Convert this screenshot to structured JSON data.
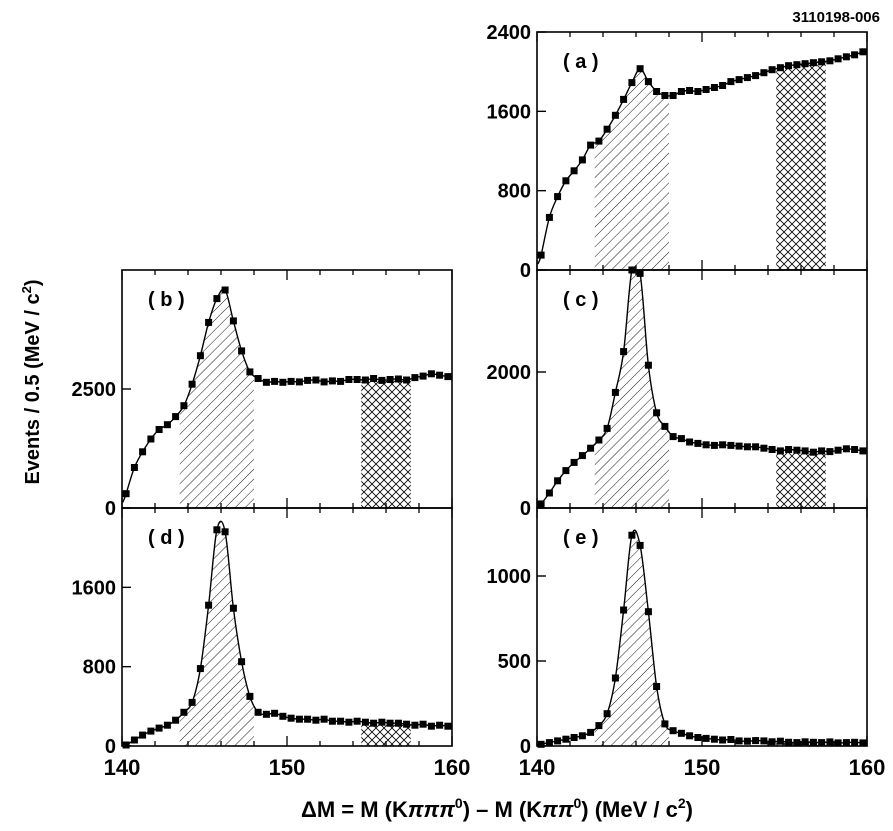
{
  "figure_id": "3110198-006",
  "ylabel_main": "Events / 0.5 (MeV / c",
  "ylabel_sup": "2",
  "ylabel_close": ")",
  "xlabel": {
    "delta": "Δ",
    "main": "M = M (K",
    "pi1": "π",
    "pi2": "π",
    "pi3": "π",
    "zero1": "0",
    "mid": ") – M (K",
    "pi4": "π",
    "pi5": "π",
    "zero2": "0",
    "unit": ") (MeV / c",
    "unit_sup": "2",
    "close": ")"
  },
  "chart_data": [
    {
      "type": "scatter",
      "panel": "a",
      "label": "( a )",
      "xlim": [
        140,
        160
      ],
      "ylim": [
        0,
        2400
      ],
      "yticks": [
        0,
        800,
        1600,
        2400
      ],
      "xticks": [
        140,
        150,
        160
      ],
      "signal_band": [
        143.5,
        148
      ],
      "sideband": [
        154.5,
        157.5
      ],
      "x": [
        140.25,
        140.75,
        141.25,
        141.75,
        142.25,
        142.75,
        143.25,
        143.75,
        144.25,
        144.75,
        145.25,
        145.75,
        146.25,
        146.75,
        147.25,
        147.75,
        148.25,
        148.75,
        149.25,
        149.75,
        150.25,
        150.75,
        151.25,
        151.75,
        152.25,
        152.75,
        153.25,
        153.75,
        154.25,
        154.75,
        155.25,
        155.75,
        156.25,
        156.75,
        157.25,
        157.75,
        158.25,
        158.75,
        159.25,
        159.75
      ],
      "y": [
        150,
        530,
        740,
        900,
        1000,
        1110,
        1260,
        1300,
        1420,
        1560,
        1720,
        1890,
        2030,
        1900,
        1800,
        1760,
        1760,
        1800,
        1810,
        1800,
        1820,
        1840,
        1860,
        1900,
        1920,
        1940,
        1960,
        1990,
        2020,
        2040,
        2060,
        2070,
        2080,
        2090,
        2100,
        2110,
        2130,
        2150,
        2170,
        2200
      ]
    },
    {
      "type": "scatter",
      "panel": "b",
      "label": "( b )",
      "xlim": [
        140,
        160
      ],
      "ylim": [
        0,
        5000
      ],
      "yticks": [
        0,
        2500
      ],
      "xticks": [
        140,
        150,
        160
      ],
      "signal_band": [
        143.5,
        148
      ],
      "sideband": [
        154.5,
        157.5
      ],
      "x": [
        140.25,
        140.75,
        141.25,
        141.75,
        142.25,
        142.75,
        143.25,
        143.75,
        144.25,
        144.75,
        145.25,
        145.75,
        146.25,
        146.75,
        147.25,
        147.75,
        148.25,
        148.75,
        149.25,
        149.75,
        150.25,
        150.75,
        151.25,
        151.75,
        152.25,
        152.75,
        153.25,
        153.75,
        154.25,
        154.75,
        155.25,
        155.75,
        156.25,
        156.75,
        157.25,
        157.75,
        158.25,
        158.75,
        159.25,
        159.75
      ],
      "y": [
        300,
        850,
        1180,
        1450,
        1650,
        1750,
        1920,
        2150,
        2600,
        3200,
        3900,
        4400,
        4580,
        3930,
        3300,
        2860,
        2720,
        2640,
        2660,
        2640,
        2660,
        2650,
        2680,
        2690,
        2650,
        2670,
        2660,
        2700,
        2700,
        2690,
        2720,
        2680,
        2700,
        2710,
        2690,
        2740,
        2770,
        2820,
        2790,
        2760
      ]
    },
    {
      "type": "scatter",
      "panel": "c",
      "label": "( c )",
      "xlim": [
        140,
        160
      ],
      "ylim": [
        0,
        3500
      ],
      "yticks": [
        0,
        2000
      ],
      "xticks": [
        140,
        150,
        160
      ],
      "signal_band": [
        143.5,
        148
      ],
      "sideband": [
        154.5,
        157.5
      ],
      "x": [
        140.25,
        140.75,
        141.25,
        141.75,
        142.25,
        142.75,
        143.25,
        143.75,
        144.25,
        144.75,
        145.25,
        145.75,
        146.25,
        146.75,
        147.25,
        147.75,
        148.25,
        148.75,
        149.25,
        149.75,
        150.25,
        150.75,
        151.25,
        151.75,
        152.25,
        152.75,
        153.25,
        153.75,
        154.25,
        154.75,
        155.25,
        155.75,
        156.25,
        156.75,
        157.25,
        157.75,
        158.25,
        158.75,
        159.25,
        159.75
      ],
      "y": [
        60,
        220,
        400,
        550,
        670,
        770,
        880,
        1000,
        1170,
        1700,
        2300,
        3500,
        3450,
        2100,
        1400,
        1200,
        1050,
        1020,
        970,
        950,
        930,
        920,
        930,
        920,
        910,
        900,
        900,
        880,
        860,
        840,
        860,
        850,
        840,
        820,
        840,
        830,
        850,
        870,
        860,
        840
      ]
    },
    {
      "type": "scatter",
      "panel": "d",
      "label": "( d )",
      "xlim": [
        140,
        160
      ],
      "ylim": [
        0,
        2400
      ],
      "yticks": [
        0,
        800,
        1600
      ],
      "xticks": [
        140,
        150,
        160
      ],
      "signal_band": [
        143.5,
        148
      ],
      "sideband": [
        154.5,
        157.5
      ],
      "x": [
        140.25,
        140.75,
        141.25,
        141.75,
        142.25,
        142.75,
        143.25,
        143.75,
        144.25,
        144.75,
        145.25,
        145.75,
        146.25,
        146.75,
        147.25,
        147.75,
        148.25,
        148.75,
        149.25,
        149.75,
        150.25,
        150.75,
        151.25,
        151.75,
        152.25,
        152.75,
        153.25,
        153.75,
        154.25,
        154.75,
        155.25,
        155.75,
        156.25,
        156.75,
        157.25,
        157.75,
        158.25,
        158.75,
        159.25,
        159.75
      ],
      "y": [
        10,
        60,
        110,
        150,
        180,
        210,
        260,
        340,
        440,
        780,
        1420,
        2180,
        2160,
        1390,
        850,
        500,
        340,
        320,
        330,
        300,
        280,
        270,
        270,
        260,
        270,
        250,
        250,
        240,
        250,
        240,
        230,
        240,
        230,
        230,
        220,
        210,
        220,
        200,
        210,
        200
      ]
    },
    {
      "type": "scatter",
      "panel": "e",
      "label": "( e )",
      "xlim": [
        140,
        160
      ],
      "ylim": [
        0,
        1400
      ],
      "yticks": [
        0,
        500,
        1000
      ],
      "xticks": [
        140,
        150,
        160
      ],
      "signal_band": [
        143.5,
        148
      ],
      "sideband": [
        154.5,
        157.5
      ],
      "x": [
        140.25,
        140.75,
        141.25,
        141.75,
        142.25,
        142.75,
        143.25,
        143.75,
        144.25,
        144.75,
        145.25,
        145.75,
        146.25,
        146.75,
        147.25,
        147.75,
        148.25,
        148.75,
        149.25,
        149.75,
        150.25,
        150.75,
        151.25,
        151.75,
        152.25,
        152.75,
        153.25,
        153.75,
        154.25,
        154.75,
        155.25,
        155.75,
        156.25,
        156.75,
        157.25,
        157.75,
        158.25,
        158.75,
        159.25,
        159.75
      ],
      "y": [
        10,
        20,
        30,
        40,
        50,
        60,
        80,
        120,
        190,
        400,
        800,
        1240,
        1180,
        790,
        350,
        130,
        90,
        75,
        60,
        50,
        45,
        40,
        35,
        38,
        30,
        28,
        32,
        30,
        25,
        28,
        22,
        20,
        25,
        22,
        20,
        24,
        18,
        20,
        22,
        18
      ]
    }
  ]
}
